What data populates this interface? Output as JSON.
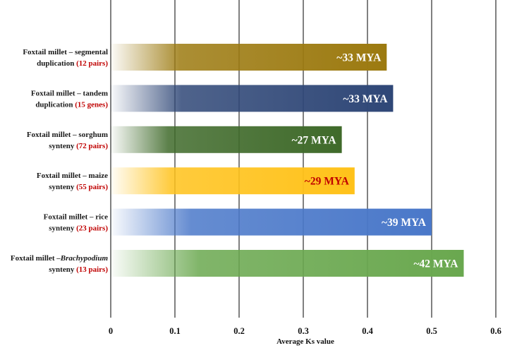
{
  "chart_data": {
    "type": "bar",
    "orientation": "horizontal",
    "xlabel": "Average Ks value",
    "xlim": [
      0,
      0.6
    ],
    "xticks": [
      "0",
      "0.1",
      "0.2",
      "0.3",
      "0.4",
      "0.5",
      "0.6"
    ],
    "grid": true,
    "bars": [
      {
        "label_line1": "Foxtail millet – segmental",
        "label_line2_text": "duplication",
        "label_line2_count": "(12 pairs)",
        "value": 0.43,
        "bar_label": "~33 MYA",
        "color": "#9c7a10",
        "label_color": "#ffffff"
      },
      {
        "label_line1": "Foxtail millet – tandem",
        "label_line2_text": "duplication",
        "label_line2_count": "(15 genes)",
        "value": 0.44,
        "bar_label": "~33 MYA",
        "color": "#2f4777",
        "label_color": "#ffffff"
      },
      {
        "label_line1": "Foxtail millet – sorghum",
        "label_line2_text": "synteny",
        "label_line2_count": "(72 pairs)",
        "value": 0.36,
        "bar_label": "~27 MYA",
        "color": "#3f6a2a",
        "label_color": "#ffffff"
      },
      {
        "label_line1": "Foxtail millet – maize",
        "label_line2_text": "synteny",
        "label_line2_count": "(55 pairs)",
        "value": 0.38,
        "bar_label": "~29 MYA",
        "color": "#ffc21a",
        "label_color": "#c00000"
      },
      {
        "label_line1": "Foxtail millet – rice",
        "label_line2_text": "synteny",
        "label_line2_count": "(23 pairs)",
        "value": 0.5,
        "bar_label": "~39 MYA",
        "color": "#4a78c9",
        "label_color": "#ffffff"
      },
      {
        "label_line1_plain": "Foxtail millet –",
        "label_line1_italic": "Brachypodium",
        "label_line2_text": "synteny",
        "label_line2_count": "(13 pairs)",
        "value": 0.55,
        "bar_label": "~42 MYA",
        "color": "#6aa84f",
        "label_color": "#ffffff"
      }
    ]
  }
}
